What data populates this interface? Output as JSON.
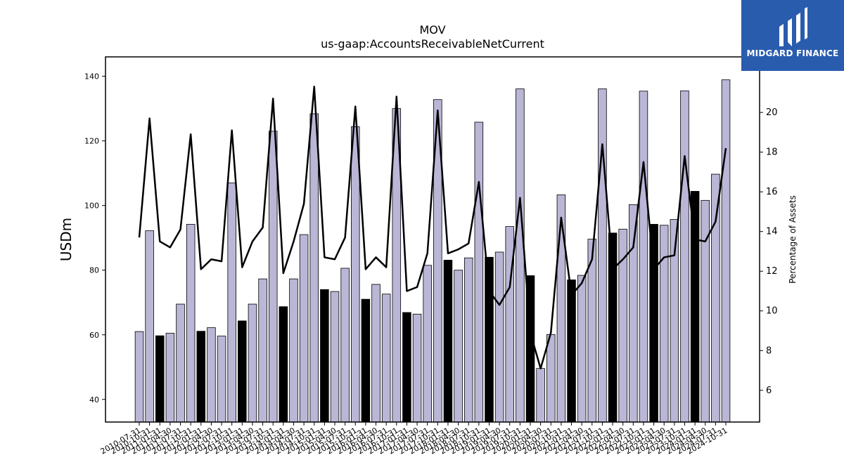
{
  "brand": {
    "name": "MIDGARD FINANCE",
    "bg": "#2a5cae",
    "icon": "midgard-logo-icon"
  },
  "chart_data": {
    "type": "bar",
    "title": "MOV",
    "subtitle": "us-gaap:AccountsReceivableNetCurrent",
    "ylabel": "USDm",
    "y2label": "Percentage of Assets",
    "ylim": [
      33,
      146
    ],
    "y2lim": [
      4.4,
      22.8
    ],
    "yticks": [
      40,
      60,
      80,
      100,
      120,
      140
    ],
    "y2ticks": [
      6,
      8,
      10,
      12,
      14,
      16,
      18,
      20
    ],
    "bar_color": "#b9b6d6",
    "highlight_color": "#000000",
    "line_color": "#000000",
    "categories": [
      "2010-07-31",
      "2010-10-31",
      "2011-01-31",
      "2011-04-30",
      "2011-07-31",
      "2011-10-31",
      "2012-01-31",
      "2012-04-30",
      "2012-07-31",
      "2012-10-31",
      "2013-01-31",
      "2013-04-30",
      "2013-07-31",
      "2013-10-31",
      "2014-01-31",
      "2014-04-30",
      "2014-07-31",
      "2014-10-31",
      "2015-01-31",
      "2015-04-30",
      "2015-07-31",
      "2015-10-31",
      "2016-01-31",
      "2016-04-30",
      "2016-07-31",
      "2016-10-31",
      "2017-01-31",
      "2017-04-30",
      "2017-07-31",
      "2017-10-31",
      "2018-01-31",
      "2018-04-30",
      "2018-07-31",
      "2018-10-31",
      "2019-01-31",
      "2019-04-30",
      "2019-07-31",
      "2019-10-31",
      "2020-01-31",
      "2020-04-30",
      "2020-07-31",
      "2020-10-31",
      "2021-01-31",
      "2021-04-30",
      "2021-07-31",
      "2021-10-31",
      "2022-01-31",
      "2022-04-30",
      "2022-07-31",
      "2022-10-31",
      "2023-01-31",
      "2023-04-30",
      "2023-07-31",
      "2023-10-31",
      "2024-01-31",
      "2024-04-30",
      "2024-07-31",
      "2024-10-31"
    ],
    "series": [
      {
        "kind": "bar",
        "axis": "left",
        "values": [
          61,
          92.2,
          59.7,
          60.5,
          69.5,
          94.2,
          61.1,
          62.2,
          59.6,
          107,
          64.3,
          69.5,
          77.3,
          123,
          68.7,
          77.3,
          91,
          128.4,
          74,
          73.4,
          80.6,
          124.4,
          71,
          75.6,
          72.6,
          130,
          66.9,
          66.4,
          81.5,
          132.8,
          83.1,
          80,
          83.8,
          125.8,
          84,
          85.6,
          93.5,
          136.1,
          78.3,
          49.6,
          60.1,
          103.3,
          77,
          78.4,
          89.6,
          136.1,
          91.5,
          92.7,
          100.3,
          135.4,
          94.2,
          93.9,
          95.7,
          135.5,
          104.4,
          101.6,
          109.7,
          138.9
        ],
        "highlighted": [
          false,
          false,
          true,
          false,
          false,
          false,
          true,
          false,
          false,
          false,
          true,
          false,
          false,
          false,
          true,
          false,
          false,
          false,
          true,
          false,
          false,
          false,
          true,
          false,
          false,
          false,
          true,
          false,
          false,
          false,
          true,
          false,
          false,
          false,
          true,
          false,
          false,
          false,
          true,
          false,
          false,
          false,
          true,
          false,
          false,
          false,
          true,
          false,
          false,
          false,
          true,
          false,
          false,
          false,
          true,
          false,
          false,
          false
        ]
      },
      {
        "kind": "line",
        "axis": "right",
        "values": [
          13.7,
          19.7,
          13.5,
          13.2,
          14.1,
          18.9,
          12.1,
          12.6,
          12.5,
          19.1,
          12.2,
          13.5,
          14.2,
          20.7,
          11.9,
          13.5,
          15.4,
          21.3,
          12.7,
          12.6,
          13.7,
          20.3,
          12.1,
          12.7,
          12.2,
          20.8,
          11,
          11.2,
          12.9,
          20.1,
          12.9,
          13.1,
          13.4,
          16.5,
          11,
          10.3,
          11.2,
          15.7,
          8.9,
          7.1,
          8.9,
          14.7,
          10.8,
          11.4,
          12.6,
          18.4,
          12.1,
          12.6,
          13.2,
          17.5,
          12.1,
          12.7,
          12.8,
          17.8,
          13.6,
          13.5,
          14.5,
          18.2
        ]
      }
    ]
  }
}
